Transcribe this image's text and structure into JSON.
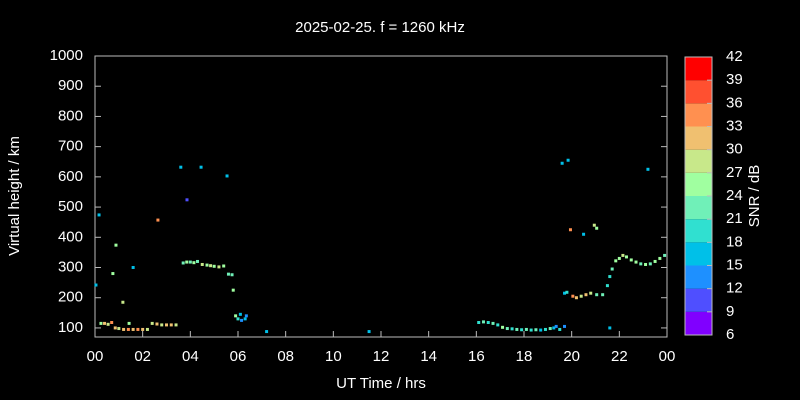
{
  "chart_data": {
    "type": "scatter",
    "title": "2025-02-25. f = 1260 kHz",
    "x_label": "UT Time / hrs",
    "y_label": "Virtual height / km",
    "xlim": [
      0,
      24
    ],
    "xticks": [
      {
        "value": 0,
        "label": "00"
      },
      {
        "value": 2,
        "label": "02"
      },
      {
        "value": 4,
        "label": "04"
      },
      {
        "value": 6,
        "label": "06"
      },
      {
        "value": 8,
        "label": "08"
      },
      10,
      12,
      14,
      16,
      18,
      20,
      22,
      {
        "value": 24,
        "label": "00"
      }
    ],
    "ylim": [
      70,
      1000
    ],
    "yticks": [
      100,
      200,
      300,
      400,
      500,
      600,
      700,
      800,
      900,
      1000
    ],
    "colorbar": {
      "label": "SNR / dB",
      "lim": [
        6,
        42
      ],
      "ticks": [
        6,
        9,
        12,
        15,
        18,
        21,
        24,
        27,
        30,
        33,
        36,
        39,
        42
      ],
      "colors": [
        "#8000ff",
        "#4f4fff",
        "#1e90ff",
        "#00c0e8",
        "#30e0d0",
        "#70f0b8",
        "#a0ffa0",
        "#c8e88a",
        "#f0c070",
        "#ff9050",
        "#ff5030",
        "#ff0000"
      ]
    },
    "x": [
      0.04,
      0.17,
      0.25,
      0.4,
      0.55,
      0.7,
      0.85,
      1.0,
      1.2,
      1.4,
      1.6,
      1.8,
      2.0,
      2.2,
      2.4,
      2.6,
      2.8,
      3.0,
      3.2,
      3.4,
      0.88,
      0.75,
      1.17,
      1.43,
      1.6,
      2.64,
      3.6,
      3.86,
      4.45,
      5.54,
      3.7,
      3.85,
      4.0,
      4.15,
      4.3,
      4.5,
      4.7,
      4.85,
      5.0,
      5.2,
      5.4,
      5.6,
      5.75,
      5.8,
      5.9,
      6.0,
      6.1,
      6.15,
      6.3,
      6.35,
      7.2,
      11.5,
      16.1,
      16.3,
      16.5,
      16.7,
      16.9,
      17.1,
      17.3,
      17.5,
      17.7,
      17.9,
      18.1,
      18.3,
      18.5,
      18.7,
      18.9,
      19.1,
      19.25,
      19.35,
      19.5,
      19.7,
      19.6,
      19.85,
      19.7,
      19.8,
      19.95,
      20.05,
      20.2,
      20.4,
      20.6,
      20.8,
      20.5,
      20.95,
      21.05,
      21.05,
      21.3,
      21.5,
      21.6,
      21.7,
      21.85,
      22.0,
      22.15,
      22.3,
      22.5,
      22.7,
      22.9,
      23.1,
      23.3,
      23.5,
      23.7,
      23.9,
      23.2,
      21.6
    ],
    "values": [
      242,
      474,
      115,
      115,
      112,
      118,
      100,
      98,
      95,
      95,
      95,
      95,
      95,
      95,
      115,
      113,
      110,
      110,
      110,
      110,
      374,
      280,
      185,
      115,
      300,
      457,
      632,
      524,
      632,
      603,
      315,
      318,
      318,
      316,
      320,
      310,
      308,
      306,
      304,
      302,
      305,
      278,
      276,
      225,
      140,
      130,
      145,
      125,
      130,
      140,
      88,
      88,
      118,
      120,
      118,
      115,
      110,
      102,
      98,
      97,
      95,
      94,
      95,
      93,
      94,
      93,
      95,
      98,
      100,
      105,
      95,
      105,
      645,
      655,
      215,
      218,
      425,
      205,
      200,
      205,
      210,
      215,
      410,
      440,
      430,
      210,
      210,
      240,
      270,
      295,
      322,
      330,
      340,
      335,
      325,
      318,
      312,
      310,
      312,
      320,
      330,
      340,
      625,
      100
    ],
    "snr": [
      15,
      15,
      24,
      30,
      27,
      33,
      30,
      27,
      30,
      33,
      30,
      33,
      30,
      27,
      27,
      30,
      27,
      30,
      30,
      27,
      24,
      24,
      27,
      24,
      15,
      33,
      15,
      9,
      15,
      15,
      21,
      24,
      21,
      24,
      21,
      27,
      24,
      27,
      24,
      27,
      24,
      21,
      21,
      24,
      24,
      18,
      15,
      12,
      15,
      12,
      15,
      15,
      18,
      21,
      18,
      21,
      18,
      24,
      21,
      18,
      21,
      18,
      21,
      18,
      21,
      15,
      18,
      21,
      15,
      12,
      18,
      12,
      15,
      15,
      15,
      18,
      33,
      33,
      30,
      27,
      30,
      27,
      15,
      27,
      24,
      21,
      21,
      18,
      18,
      21,
      24,
      24,
      27,
      24,
      24,
      24,
      21,
      24,
      21,
      24,
      24,
      21,
      15,
      15
    ]
  }
}
